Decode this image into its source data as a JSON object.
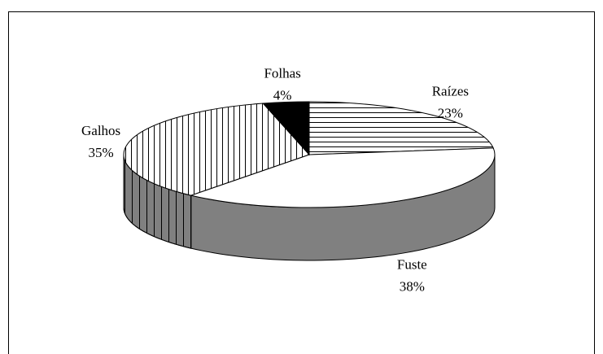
{
  "chart_data": {
    "type": "pie3d",
    "categories": [
      "Raízes",
      "Fuste",
      "Galhos",
      "Folhas"
    ],
    "values": [
      23,
      38,
      35,
      4
    ],
    "value_labels": [
      "23%",
      "38%",
      "35%",
      "4%"
    ],
    "patterns": [
      "horizontal",
      "none",
      "vertical",
      "solid"
    ],
    "color": "#000000",
    "side_color": "#808080"
  }
}
